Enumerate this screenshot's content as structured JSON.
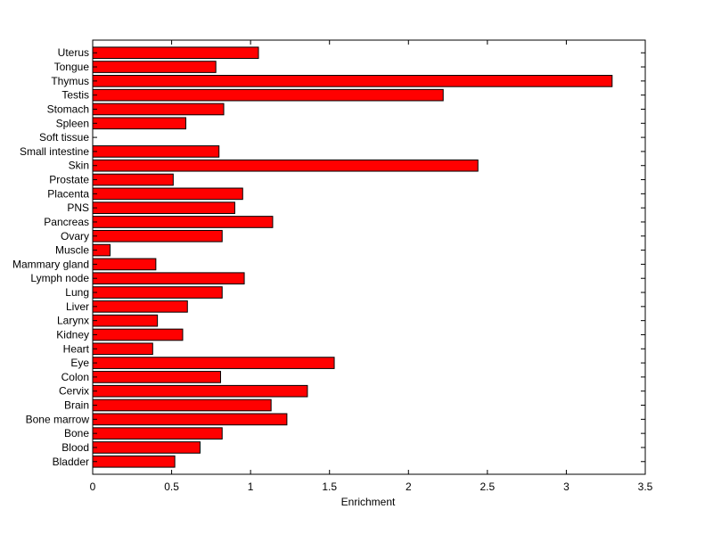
{
  "chart_data": {
    "type": "bar",
    "orientation": "horizontal",
    "title": "",
    "xlabel": "Enrichment",
    "ylabel": "",
    "xlim": [
      0,
      3.5
    ],
    "xticks": [
      "0",
      "0.5",
      "1",
      "1.5",
      "2",
      "2.5",
      "3",
      "3.5"
    ],
    "grid": false,
    "bar_color": "#ff0000",
    "bar_edge_color": "#000000",
    "categories": [
      "Uterus",
      "Tongue",
      "Thymus",
      "Testis",
      "Stomach",
      "Spleen",
      "Soft tissue",
      "Small intestine",
      "Skin",
      "Prostate",
      "Placenta",
      "PNS",
      "Pancreas",
      "Ovary",
      "Muscle",
      "Mammary gland",
      "Lymph node",
      "Lung",
      "Liver",
      "Larynx",
      "Kidney",
      "Heart",
      "Eye",
      "Colon",
      "Cervix",
      "Brain",
      "Bone marrow",
      "Bone",
      "Blood",
      "Bladder"
    ],
    "values": [
      1.05,
      0.78,
      3.29,
      2.22,
      0.83,
      0.59,
      0,
      0.8,
      2.44,
      0.51,
      0.95,
      0.9,
      1.14,
      0.82,
      0.11,
      0.4,
      0.96,
      0.82,
      0.6,
      0.41,
      0.57,
      0.38,
      1.53,
      0.81,
      1.36,
      1.13,
      1.23,
      0.82,
      0.68,
      0.52
    ]
  }
}
